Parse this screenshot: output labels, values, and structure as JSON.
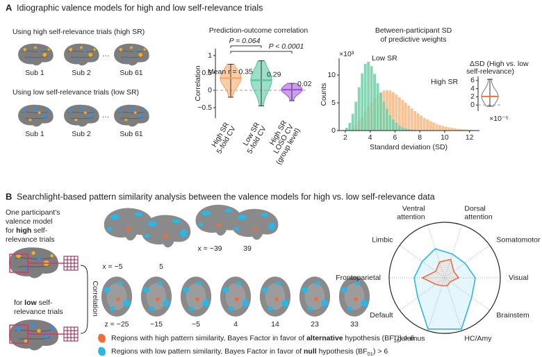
{
  "panel_a": {
    "letter": "A",
    "title": "Idiographic valence models for high and low self-relevance trials",
    "high_sr": {
      "heading": "Using high self-relevance trials (high SR)",
      "subjects": [
        "Sub 1",
        "Sub 2",
        "···",
        "Sub 61"
      ]
    },
    "low_sr": {
      "heading": "Using low self-relevance trials (low SR)",
      "subjects": [
        "Sub 1",
        "Sub 2",
        "···",
        "Sub 61"
      ]
    }
  },
  "panel_b": {
    "letter": "B",
    "title": "Searchlight-based pattern similarity analysis between the valence models for high vs. low self-relevance data",
    "model_high": {
      "lines": [
        "One participant's",
        "valence model"
      ],
      "pre": "for ",
      "bold": "high",
      "post": " self-",
      "last": "relevance trials"
    },
    "model_low": {
      "pre": "for ",
      "bold": "low",
      "post": " self-",
      "last": "relevance trials"
    },
    "correlation": "Correlation",
    "sagittal_labels": [
      "x = −5",
      "5",
      "x = −39",
      "39"
    ],
    "axial_labels": [
      "z = −25",
      "−15",
      "−5",
      "4",
      "14",
      "23",
      "33"
    ],
    "legend": [
      {
        "color": "#f26b3a",
        "text": "Regions with high pattern similarity, Bayes Factor in favor of ",
        "bold": "alternative",
        "text2": " hypothesis (BF",
        "sub": "10",
        "text3": ") > 6"
      },
      {
        "color": "#29b6e8",
        "text": "Regions with low pattern similarity, Bayes Factor in favor of ",
        "bold": "null",
        "text2": " hypothesis (BF",
        "sub": "01",
        "text3": ") > 6"
      }
    ]
  },
  "chart_data": [
    {
      "type": "violin",
      "title": [
        "Prediction-outcome correlation"
      ],
      "y_label": "Correlation",
      "categories": [
        [
          "High SR",
          "5-fold CV"
        ],
        [
          "Low SR",
          "5-fold CV"
        ],
        [
          "High SR",
          "LOSO CV",
          "(group level)"
        ]
      ],
      "values": [
        0.35,
        0.29,
        0.02
      ],
      "value_labels": [
        "Mean r = 0.35",
        "0.29",
        "0.02"
      ],
      "min": [
        -0.2,
        -0.45,
        -0.3
      ],
      "max": [
        0.75,
        0.85,
        0.2
      ],
      "colors": [
        "#f5a25d",
        "#4cc39b",
        "#a24fe0"
      ],
      "filled": true,
      "annotations": [
        "P = 0.064",
        "P < 0.0001"
      ],
      "reference_line": 0,
      "ylim": [
        -0.8,
        1.2
      ],
      "yticks": [
        {
          "value": -0.5,
          "label": "−0.5"
        },
        0,
        0.5,
        1
      ]
    },
    {
      "type": "histogram",
      "title": [
        "Between-participant SD",
        "of predictive weights"
      ],
      "x_label": "Standard deviation (SD)",
      "y_label": "Counts",
      "y_multiplier": "×10³",
      "bins": [
        1.75,
        2.0,
        2.25,
        2.5,
        2.75,
        3.0,
        3.25,
        3.5,
        3.75,
        4.0,
        4.25,
        4.5,
        4.75,
        5.0,
        5.25,
        5.5,
        5.75,
        6.0,
        6.25,
        6.5,
        6.75,
        7.0,
        7.25,
        7.5,
        7.75,
        8.0,
        8.25,
        8.5,
        8.75,
        9.0,
        9.25,
        9.5,
        9.75,
        10.0,
        10.25,
        10.5,
        10.75,
        11.0,
        11.25,
        11.5,
        11.75,
        12.0,
        12.25,
        12.5,
        12.75
      ],
      "series": [
        {
          "name": "High SR",
          "color": "#f9b884",
          "values": [
            0,
            0.05,
            0.2,
            0.5,
            1.0,
            1.7,
            2.5,
            3.4,
            4.3,
            5.1,
            5.8,
            6.4,
            6.9,
            7.2,
            7.3,
            7.2,
            6.9,
            6.5,
            6.0,
            5.5,
            5.0,
            4.5,
            4.0,
            3.5,
            3.1,
            2.7,
            2.3,
            2.0,
            1.7,
            1.45,
            1.2,
            1.0,
            0.85,
            0.7,
            0.58,
            0.48,
            0.4,
            0.32,
            0.26,
            0.21,
            0.17,
            0.13,
            0.1,
            0.08
          ]
        },
        {
          "name": "Low SR",
          "color": "#6fcfa8",
          "values": [
            0.1,
            0.5,
            1.4,
            3.0,
            5.2,
            7.8,
            10.3,
            12.0,
            12.4,
            11.6,
            10.2,
            8.5,
            6.8,
            5.2,
            3.9,
            2.8,
            2.0,
            1.4,
            0.9,
            0.6,
            0.4,
            0.25,
            0.15,
            0.1,
            0.05,
            0,
            0,
            0,
            0,
            0,
            0,
            0,
            0,
            0,
            0,
            0,
            0,
            0,
            0,
            0,
            0,
            0,
            0,
            0
          ]
        }
      ],
      "xlim": [
        1.5,
        12.8
      ],
      "xticks": [
        2,
        4,
        6,
        8,
        10,
        12
      ],
      "ylim": [
        0,
        13
      ],
      "yticks": [
        0,
        5,
        10
      ]
    },
    {
      "type": "violin",
      "title": [
        "ΔSD (High vs. low",
        "self-relevance)"
      ],
      "y_multiplier": "×10⁻⁵",
      "values": [
        2.1
      ],
      "min": [
        -0.3
      ],
      "max": [
        6.3
      ],
      "colors": [
        "#777777"
      ],
      "line_color": "#e5782c",
      "filled": false,
      "reference_line": 0,
      "ylim": [
        -1.5,
        7
      ],
      "yticks": [
        0,
        2,
        4,
        6
      ]
    },
    {
      "type": "radar",
      "categories": [
        [
          "Ventral",
          "attention"
        ],
        [
          "Dorsal",
          "attention"
        ],
        [
          "Somatomotor"
        ],
        [
          "Visual"
        ],
        [
          "Brainstem"
        ],
        [
          "HC/Amy"
        ],
        [
          "Thalamus"
        ],
        [
          "Default"
        ],
        [
          "Frontoparietal"
        ],
        [
          "Limbic"
        ]
      ],
      "rlim": [
        0,
        1
      ],
      "series": [
        {
          "color": "#29b6e8",
          "values": [
            0.55,
            0.45,
            0.45,
            0.55,
            0.6,
            0.97,
            0.97,
            0.6,
            0.55,
            0.5
          ]
        },
        {
          "color": "#f26b3a",
          "values": [
            0.3,
            0.35,
            0.2,
            0.25,
            0.12,
            0.15,
            0.15,
            0.2,
            0.4,
            0.2
          ]
        }
      ]
    }
  ]
}
